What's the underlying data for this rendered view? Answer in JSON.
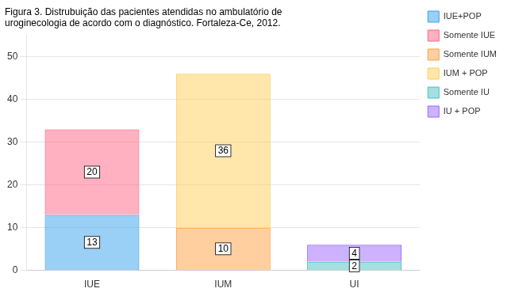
{
  "chart_data": {
    "type": "bar",
    "title": "Figura 3. Distrubuição das pacientes atendidas no ambulatório de\nuroginecologia de acordo com o diagnóstico. Fortaleza-Ce, 2012.",
    "categories": [
      "IUE",
      "IUM",
      "UI"
    ],
    "series": [
      {
        "name": "IUE+POP",
        "values": [
          13,
          null,
          null
        ]
      },
      {
        "name": "Somente IUE",
        "values": [
          20,
          null,
          null
        ]
      },
      {
        "name": "Somente IUM",
        "values": [
          null,
          10,
          null
        ]
      },
      {
        "name": "IUM + POP",
        "values": [
          null,
          36,
          null
        ]
      },
      {
        "name": "Somente IU",
        "values": [
          null,
          null,
          2
        ]
      },
      {
        "name": "IU + POP",
        "values": [
          null,
          null,
          4
        ]
      }
    ],
    "stacked": true,
    "data_labels": true,
    "ylim": [
      0,
      55
    ],
    "yticks": [
      0,
      10,
      20,
      30,
      40,
      50
    ],
    "grid": true,
    "legend": "right"
  }
}
